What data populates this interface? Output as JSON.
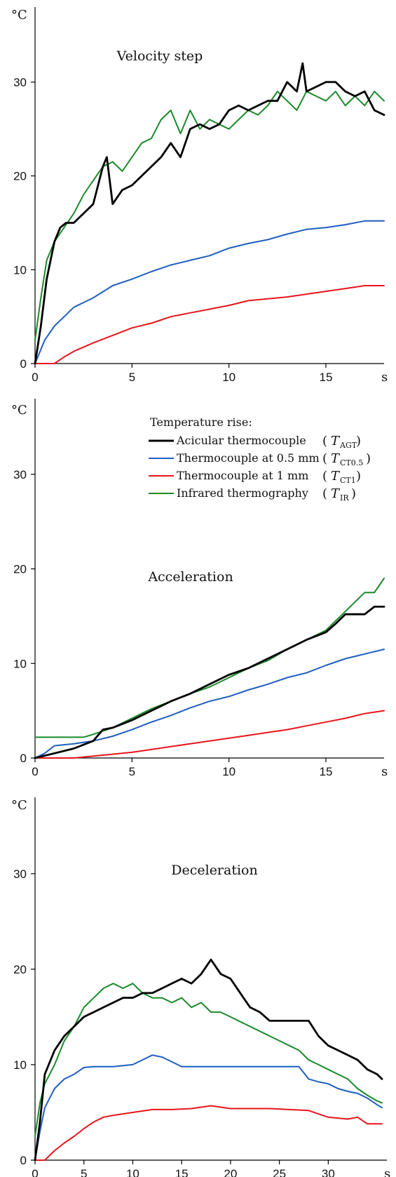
{
  "chart_data": [
    {
      "type": "line",
      "title": "Velocity step",
      "y_unit": "°C",
      "x_unit": "s",
      "xlim": [
        0,
        18
      ],
      "ylim": [
        0,
        38
      ],
      "x_ticks": [
        0,
        5,
        10,
        15
      ],
      "y_ticks": [
        0,
        10,
        20,
        30
      ],
      "grid": false,
      "series": [
        {
          "name": "Acicular thermocouple",
          "color": "#000000",
          "x": [
            0,
            0.3,
            0.6,
            1,
            1.3,
            1.6,
            2,
            2.5,
            3,
            3.5,
            3.7,
            4,
            4.5,
            5,
            5.5,
            6,
            6.5,
            7,
            7.5,
            8,
            8.5,
            9,
            9.5,
            10,
            10.5,
            11,
            11.5,
            12,
            12.5,
            13,
            13.5,
            13.8,
            14,
            14.5,
            15,
            15.5,
            16,
            16.5,
            17,
            17.5,
            18
          ],
          "y": [
            0,
            4,
            9,
            13,
            14.5,
            15,
            15,
            16,
            17,
            21,
            22,
            17,
            18.5,
            19,
            20,
            21,
            22,
            23.5,
            22,
            25,
            25.5,
            25,
            25.5,
            27,
            27.5,
            27,
            27.5,
            28,
            28,
            30,
            29,
            32,
            29,
            29.5,
            30,
            30,
            29,
            28.5,
            29,
            27,
            26.5
          ]
        },
        {
          "name": "Thermocouple at 0.5 mm",
          "color": "#1f5fbf",
          "x": [
            0,
            0.5,
            1,
            1.5,
            2,
            3,
            4,
            5,
            6,
            7,
            8,
            9,
            10,
            11,
            12,
            13,
            14,
            15,
            16,
            17,
            18
          ],
          "y": [
            0,
            2.5,
            4,
            5,
            6,
            7,
            8.3,
            9,
            9.8,
            10.5,
            11,
            11.5,
            12.3,
            12.8,
            13.2,
            13.8,
            14.3,
            14.5,
            14.8,
            15.2,
            15.2
          ]
        },
        {
          "name": "Thermocouple at 1 mm",
          "color": "#e8151b",
          "x": [
            0,
            1,
            1.5,
            2,
            3,
            4,
            5,
            6,
            7,
            8,
            9,
            10,
            11,
            12,
            13,
            14,
            15,
            16,
            17,
            18
          ],
          "y": [
            0,
            0,
            0.7,
            1.3,
            2.2,
            3,
            3.8,
            4.3,
            5,
            5.4,
            5.8,
            6.2,
            6.7,
            6.9,
            7.1,
            7.4,
            7.7,
            8,
            8.3,
            8.3
          ]
        },
        {
          "name": "Infrared thermography",
          "color": "#1a8a2a",
          "x": [
            0,
            0.3,
            0.6,
            1,
            1.5,
            2,
            2.5,
            3,
            3.5,
            4,
            4.5,
            5,
            5.5,
            6,
            6.5,
            7,
            7.5,
            8,
            8.5,
            9,
            9.5,
            10,
            10.5,
            11,
            11.5,
            12,
            12.5,
            13,
            13.5,
            14,
            14.5,
            15,
            15.5,
            16,
            16.5,
            17,
            17.5,
            18
          ],
          "y": [
            2.5,
            7,
            11,
            13,
            14.5,
            16,
            18,
            19.5,
            21,
            21.5,
            20.5,
            22,
            23.5,
            24,
            26,
            27,
            24.5,
            27,
            25,
            26,
            25.5,
            25,
            26,
            27,
            26.5,
            27.5,
            29,
            28,
            27,
            29,
            28.5,
            28,
            29,
            27.5,
            28.5,
            27.5,
            29,
            28
          ]
        }
      ]
    },
    {
      "type": "line",
      "title": "Acceleration",
      "y_unit": "°C",
      "x_unit": "s",
      "xlim": [
        0,
        18
      ],
      "ylim": [
        0,
        38
      ],
      "x_ticks": [
        0,
        5,
        10,
        15
      ],
      "y_ticks": [
        0,
        10,
        20,
        30
      ],
      "grid": false,
      "legend": {
        "heading": "Temperature rise:",
        "position": "top-right",
        "entries": [
          {
            "label": "Acicular thermocouple",
            "symbol": "T",
            "subscript": "AGT",
            "color": "#000000"
          },
          {
            "label": "Thermocouple at 0.5 mm",
            "symbol": "T",
            "subscript": "CT0.5",
            "color": "#1f5fbf"
          },
          {
            "label": "Thermocouple at 1 mm",
            "symbol": "T",
            "subscript": "CT1",
            "color": "#e8151b"
          },
          {
            "label": "Infrared thermography",
            "symbol": "T",
            "subscript": "IR",
            "color": "#1a8a2a"
          }
        ]
      },
      "series": [
        {
          "name": "Acicular thermocouple",
          "color": "#000000",
          "x": [
            0,
            1,
            2,
            3,
            3.5,
            4,
            5,
            6,
            7,
            8,
            9,
            10,
            11,
            12,
            13,
            14,
            15,
            15.5,
            16,
            17,
            17.5,
            18
          ],
          "y": [
            0,
            0.5,
            1,
            1.8,
            3,
            3.2,
            4,
            5,
            6,
            6.8,
            7.8,
            8.8,
            9.5,
            10.5,
            11.5,
            12.5,
            13.3,
            14.2,
            15.2,
            15.2,
            16,
            16
          ]
        },
        {
          "name": "Thermocouple at 0.5 mm",
          "color": "#1f5fbf",
          "x": [
            0,
            0.5,
            1,
            2,
            3,
            4,
            5,
            6,
            7,
            8,
            9,
            10,
            11,
            12,
            13,
            14,
            15,
            16,
            17,
            18
          ],
          "y": [
            0,
            0.5,
            1.3,
            1.5,
            1.8,
            2.3,
            3,
            3.8,
            4.5,
            5.3,
            6,
            6.5,
            7.2,
            7.8,
            8.5,
            9,
            9.8,
            10.5,
            11,
            11.5
          ]
        },
        {
          "name": "Thermocouple at 1 mm",
          "color": "#e8151b",
          "x": [
            0,
            2,
            3,
            4,
            5,
            6,
            7,
            8,
            9,
            10,
            11,
            12,
            13,
            14,
            15,
            16,
            17,
            18
          ],
          "y": [
            0,
            0,
            0.2,
            0.4,
            0.6,
            0.9,
            1.2,
            1.5,
            1.8,
            2.1,
            2.4,
            2.7,
            3.0,
            3.4,
            3.8,
            4.2,
            4.7,
            5.0
          ]
        },
        {
          "name": "Infrared thermography",
          "color": "#1a8a2a",
          "x": [
            0,
            1,
            2,
            2.5,
            3,
            4,
            5,
            6,
            7,
            8,
            9,
            10,
            11,
            12,
            13,
            14,
            15,
            16,
            16.5,
            17,
            17.5,
            18
          ],
          "y": [
            2.2,
            2.2,
            2.2,
            2.2,
            2.5,
            3.2,
            4.2,
            5.2,
            6,
            6.8,
            7.5,
            8.5,
            9.5,
            10.3,
            11.5,
            12.5,
            13.5,
            15.5,
            16.5,
            17.5,
            17.5,
            19
          ]
        }
      ]
    },
    {
      "type": "line",
      "title": "Deceleration",
      "y_unit": "°C",
      "x_unit": "s",
      "xlim": [
        0,
        36
      ],
      "ylim": [
        0,
        38
      ],
      "x_ticks": [
        0,
        5,
        10,
        15,
        20,
        25,
        30
      ],
      "y_ticks": [
        0,
        10,
        20,
        30
      ],
      "grid": false,
      "series": [
        {
          "name": "Acicular thermocouple",
          "color": "#000000",
          "x": [
            0,
            0.5,
            1,
            2,
            3,
            4,
            5,
            6,
            7,
            8,
            9,
            10,
            11,
            12,
            13,
            14,
            15,
            16,
            17,
            18,
            19,
            20,
            21,
            22,
            23,
            24,
            25,
            26,
            27,
            28,
            29,
            30,
            31,
            32,
            33,
            34,
            35,
            35.5
          ],
          "y": [
            0,
            4,
            9,
            11.5,
            13,
            14,
            15,
            15.5,
            16,
            16.5,
            17,
            17,
            17.5,
            17.5,
            18,
            18.5,
            19,
            18.5,
            19.5,
            21,
            19.5,
            19,
            17.5,
            16,
            15.5,
            14.6,
            14.6,
            14.6,
            14.6,
            14.6,
            13,
            12,
            11.5,
            11,
            10.5,
            9.5,
            9,
            8.5
          ]
        },
        {
          "name": "Thermocouple at 0.5 mm",
          "color": "#1f5fbf",
          "x": [
            0,
            0.5,
            1,
            2,
            3,
            4,
            5,
            6,
            8,
            10,
            11,
            12,
            13,
            14,
            15,
            17,
            20,
            22,
            25,
            27,
            28,
            29,
            30,
            31,
            32,
            33,
            34,
            35,
            35.5
          ],
          "y": [
            0,
            3,
            5.5,
            7.5,
            8.5,
            9,
            9.7,
            9.8,
            9.8,
            10,
            10.5,
            11,
            10.8,
            10.3,
            9.8,
            9.8,
            9.8,
            9.8,
            9.8,
            9.8,
            8.5,
            8.2,
            8,
            7.5,
            7.2,
            7,
            6.5,
            5.8,
            5.5
          ]
        },
        {
          "name": "Thermocouple at 1 mm",
          "color": "#e8151b",
          "x": [
            0,
            1,
            1.5,
            2,
            3,
            4,
            5,
            6,
            7,
            8,
            10,
            12,
            14,
            16,
            18,
            20,
            22,
            24,
            26,
            28,
            30,
            32,
            33,
            34,
            35,
            35.5
          ],
          "y": [
            0,
            0,
            0.5,
            1,
            1.8,
            2.5,
            3.3,
            4,
            4.5,
            4.7,
            5,
            5.3,
            5.3,
            5.4,
            5.7,
            5.4,
            5.4,
            5.4,
            5.3,
            5.2,
            4.5,
            4.3,
            4.5,
            3.8,
            3.8,
            3.8
          ]
        },
        {
          "name": "Infrared thermography",
          "color": "#1a8a2a",
          "x": [
            0,
            0.5,
            1,
            2,
            3,
            4,
            5,
            6,
            7,
            8,
            9,
            10,
            11,
            12,
            13,
            14,
            15,
            16,
            17,
            18,
            19,
            20,
            21,
            22,
            23,
            24,
            25,
            26,
            27,
            28,
            29,
            30,
            31,
            32,
            33,
            34,
            35,
            35.5
          ],
          "y": [
            2.5,
            6,
            8,
            10,
            12.5,
            14,
            16,
            17,
            18,
            18.5,
            18,
            18.5,
            17.5,
            17,
            17,
            16.5,
            17,
            16,
            16.5,
            15.5,
            15.5,
            15,
            14.5,
            14,
            13.5,
            13,
            12.5,
            12,
            11.5,
            10.5,
            10,
            9.5,
            9,
            8.5,
            7.5,
            6.8,
            6.2,
            6
          ]
        }
      ]
    }
  ]
}
